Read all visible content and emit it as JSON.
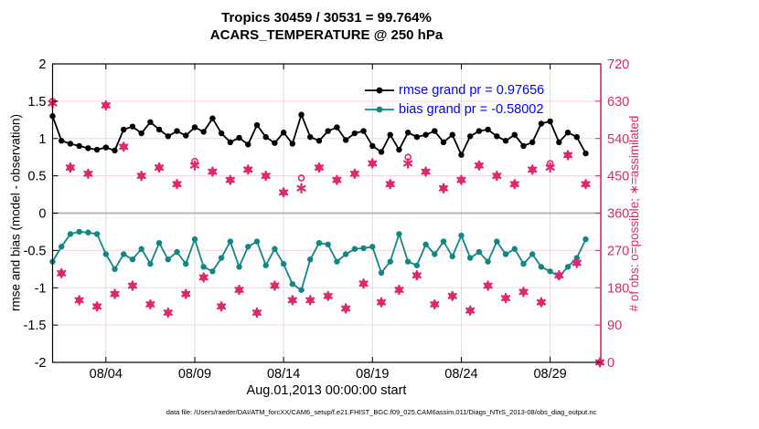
{
  "title": "Tropics 30459 / 30531 = 99.764%",
  "subtitle": "ACARS_TEMPERATURE @ 250 hPa",
  "colors": {
    "rmse_line": "#000000",
    "bias_line": "#0f8787",
    "obs_markers": "#e0266e",
    "legend_text": "#0000ff",
    "grid_horizontal": "#f6d4dd",
    "grid_vertical": "#dcdcdc",
    "zero_line": "#b8b8b8",
    "axis_box": "#000000",
    "right_axis": "#e0266e"
  },
  "legend": {
    "rmse_label": "rmse grand pr = 0.97656",
    "bias_label": "bias grand pr = -0.58002"
  },
  "chart_data": {
    "type": "line",
    "title": "Tropics 30459 / 30531 = 99.764%",
    "subtitle": "ACARS_TEMPERATURE @ 250 hPa",
    "xlabel": "Aug.01,2013 00:00:00 start",
    "ylabel_left": "rmse and bias (model - observation)",
    "ylabel_right": "# of obs: o=possible; ∗=assimilated",
    "footnote": "data file: /Users/raeder/DAI/ATM_forcXX/CAM6_setup/f.e21.FHIST_BGC.f09_025.CAM6assim.011/Diags_NTrS_2013-08/obs_diag_output.nc",
    "ylim_left": [
      -2,
      2
    ],
    "ylim_right": [
      0,
      720
    ],
    "xlim_days": [
      0,
      30.85
    ],
    "grid": true,
    "legend_position": "top-right-inside",
    "yticks_left": [
      {
        "v": 2,
        "label": "2"
      },
      {
        "v": 1.5,
        "label": "1.5"
      },
      {
        "v": 1,
        "label": "1"
      },
      {
        "v": 0.5,
        "label": "0.5"
      },
      {
        "v": 0,
        "label": "0"
      },
      {
        "v": -0.5,
        "label": "-0.5"
      },
      {
        "v": -1,
        "label": "-1"
      },
      {
        "v": -1.5,
        "label": "-1.5"
      },
      {
        "v": -2,
        "label": "-2"
      }
    ],
    "yticks_right": [
      {
        "v": 720,
        "label": "720"
      },
      {
        "v": 630,
        "label": "630"
      },
      {
        "v": 540,
        "label": "540"
      },
      {
        "v": 450,
        "label": "450"
      },
      {
        "v": 360,
        "label": "360"
      },
      {
        "v": 270,
        "label": "270"
      },
      {
        "v": 180,
        "label": "180"
      },
      {
        "v": 90,
        "label": "90"
      },
      {
        "v": 0,
        "label": "0"
      }
    ],
    "xticks": [
      {
        "day": 3,
        "label": "08/04"
      },
      {
        "day": 8,
        "label": "08/09"
      },
      {
        "day": 13,
        "label": "08/14"
      },
      {
        "day": 18,
        "label": "08/19"
      },
      {
        "day": 23,
        "label": "08/24"
      },
      {
        "day": 28,
        "label": "08/29"
      }
    ],
    "bins_per_day": 2,
    "last_count_bin_day": 30.8,
    "series": [
      {
        "name": "rmse grand pr = 0.97656",
        "axis": "left",
        "values": [
          1.3,
          0.97,
          0.93,
          0.9,
          0.87,
          0.85,
          0.88,
          0.84,
          1.12,
          1.16,
          1.07,
          1.22,
          1.12,
          1.03,
          1.1,
          1.04,
          1.15,
          1.09,
          1.27,
          1.07,
          0.95,
          1.01,
          0.92,
          1.18,
          1.02,
          0.94,
          1.08,
          0.93,
          1.32,
          1.02,
          0.97,
          1.1,
          1.15,
          0.98,
          1.07,
          1.1,
          0.9,
          0.82,
          1.05,
          0.85,
          1.08,
          1.02,
          1.05,
          1.1,
          0.95,
          1.05,
          0.78,
          1.03,
          1.1,
          1.12,
          1.03,
          0.97,
          1.05,
          0.9,
          0.95,
          1.2,
          1.23,
          0.95,
          1.08,
          1.02,
          0.8
        ]
      },
      {
        "name": "bias grand pr = -0.58002",
        "axis": "left",
        "values": [
          -0.65,
          -0.45,
          -0.28,
          -0.25,
          -0.26,
          -0.28,
          -0.55,
          -0.75,
          -0.55,
          -0.62,
          -0.48,
          -0.68,
          -0.4,
          -0.62,
          -0.52,
          -0.68,
          -0.35,
          -0.72,
          -0.78,
          -0.6,
          -0.38,
          -0.72,
          -0.45,
          -0.38,
          -0.7,
          -0.48,
          -0.68,
          -0.95,
          -1.03,
          -0.62,
          -0.4,
          -0.42,
          -0.65,
          -0.55,
          -0.48,
          -0.47,
          -0.45,
          -0.8,
          -0.65,
          -0.28,
          -0.65,
          -0.7,
          -0.42,
          -0.55,
          -0.38,
          -0.58,
          -0.3,
          -0.6,
          -0.52,
          -0.65,
          -0.38,
          -0.55,
          -0.48,
          -0.68,
          -0.55,
          -0.72,
          -0.78,
          -0.85,
          -0.72,
          -0.6,
          -0.35
        ]
      },
      {
        "name": "possible obs (o)",
        "axis": "right",
        "values": [
          630,
          215,
          470,
          150,
          455,
          135,
          620,
          165,
          520,
          185,
          450,
          140,
          470,
          120,
          430,
          165,
          485,
          205,
          460,
          135,
          440,
          175,
          465,
          120,
          450,
          185,
          410,
          150,
          445,
          150,
          470,
          160,
          440,
          130,
          455,
          190,
          480,
          145,
          430,
          175,
          495,
          210,
          460,
          140,
          420,
          160,
          440,
          125,
          475,
          185,
          450,
          155,
          430,
          170,
          465,
          145,
          480,
          210,
          500,
          240,
          430,
          0
        ]
      },
      {
        "name": "assimilated obs (*)",
        "axis": "right",
        "values": [
          625,
          215,
          470,
          150,
          455,
          135,
          620,
          165,
          520,
          185,
          450,
          140,
          470,
          120,
          430,
          165,
          475,
          205,
          460,
          135,
          440,
          175,
          465,
          120,
          450,
          185,
          410,
          150,
          420,
          150,
          470,
          160,
          440,
          130,
          455,
          190,
          480,
          145,
          430,
          175,
          480,
          210,
          460,
          140,
          420,
          160,
          440,
          125,
          475,
          185,
          450,
          155,
          430,
          170,
          465,
          145,
          470,
          210,
          500,
          240,
          430,
          0
        ]
      }
    ]
  }
}
